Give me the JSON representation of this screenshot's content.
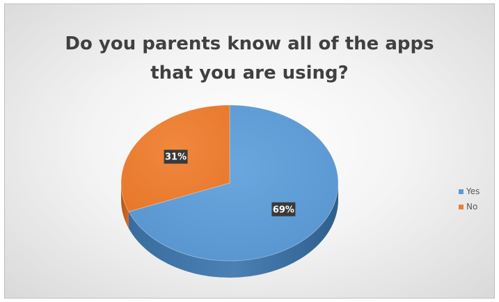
{
  "chart_data": {
    "type": "pie",
    "title": [
      "Do you parents know all of the apps",
      "that you are using?"
    ],
    "categories": [
      "Yes",
      "No"
    ],
    "values": [
      69,
      31
    ],
    "data_labels": [
      "69%",
      "31%"
    ],
    "colors": [
      "#5b9bd5",
      "#ed7d31"
    ],
    "legend_position": "right",
    "style": "3d"
  }
}
